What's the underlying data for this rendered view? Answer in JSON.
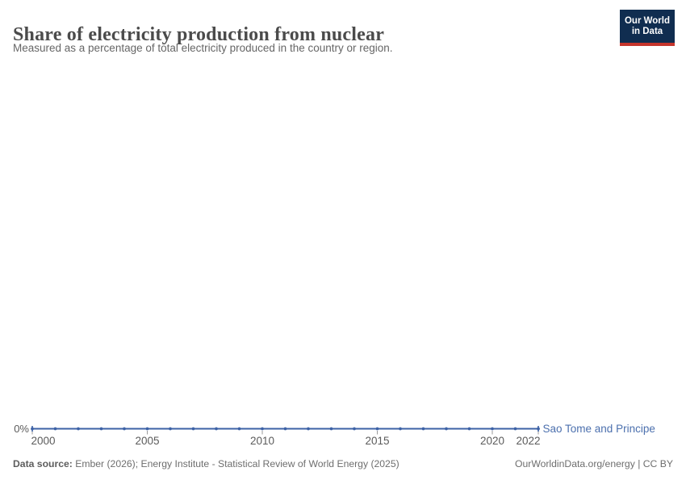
{
  "header": {
    "title": "Share of electricity production from nuclear",
    "subtitle": "Measured as a percentage of total electricity produced in the country or region."
  },
  "logo": {
    "line1": "Our World",
    "line2": "in Data"
  },
  "colors": {
    "line": "#3d62a6",
    "series_label": "#4c70ae",
    "axis_text": "#5b5b5b",
    "tick_mark": "#999999",
    "logo_bg": "#102d50",
    "logo_stripe": "#c5352c"
  },
  "chart_data": {
    "type": "line",
    "title": "Share of electricity production from nuclear",
    "subtitle": "Measured as a percentage of total electricity produced in the country or region.",
    "x": [
      2000,
      2001,
      2002,
      2003,
      2004,
      2005,
      2006,
      2007,
      2008,
      2009,
      2010,
      2011,
      2012,
      2013,
      2014,
      2015,
      2016,
      2017,
      2018,
      2019,
      2020,
      2021,
      2022
    ],
    "series": [
      {
        "name": "Sao Tome and Principe",
        "values": [
          0,
          0,
          0,
          0,
          0,
          0,
          0,
          0,
          0,
          0,
          0,
          0,
          0,
          0,
          0,
          0,
          0,
          0,
          0,
          0,
          0,
          0,
          0
        ]
      }
    ],
    "x_range": [
      2000,
      2022
    ],
    "xticks": [
      2000,
      2005,
      2010,
      2015,
      2020,
      2022
    ],
    "yticks": [
      {
        "value": 0,
        "label": "0%"
      }
    ],
    "grid": false,
    "legend_position": "right-of-line-end",
    "xlabel": "",
    "ylabel": ""
  },
  "footer": {
    "datasource_label": "Data source:",
    "datasource_text": " Ember (2026); Energy Institute - Statistical Review of World Energy (2025)",
    "credit": "OurWorldinData.org/energy | CC BY"
  }
}
